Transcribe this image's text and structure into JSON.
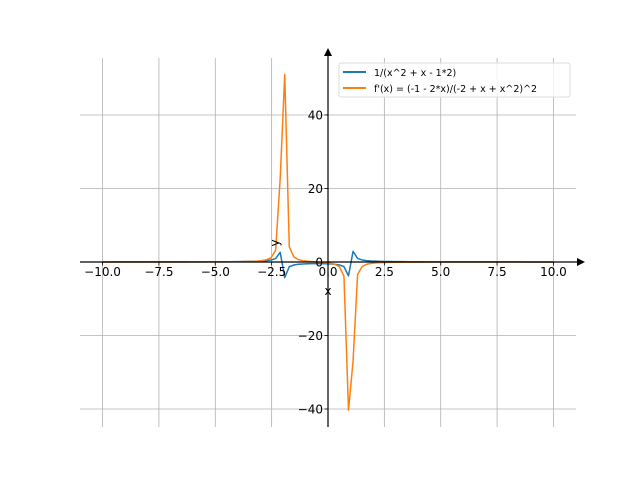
{
  "chart_data": {
    "type": "line",
    "title": "",
    "xlabel": "x",
    "ylabel": "y",
    "xlim": [
      -11.0,
      11.0
    ],
    "ylim": [
      -44.9,
      55.5
    ],
    "grid": true,
    "legend_position": "top-right",
    "x_ticks": [
      -10,
      -7.5,
      -5,
      -2.5,
      0,
      2.5,
      5,
      7.5,
      10
    ],
    "x_tick_labels": [
      "−10.0",
      "−7.5",
      "−5.0",
      "−2.5",
      "0.0",
      "2.5",
      "5.0",
      "7.5",
      "10.0"
    ],
    "y_ticks": [
      -40,
      -20,
      0,
      20,
      40
    ],
    "y_tick_labels": [
      "−40",
      "−20",
      "0",
      "20",
      "40"
    ],
    "sampling": {
      "x_start": -10,
      "x_end": 10,
      "num_points": 100
    },
    "series": [
      {
        "name": "1/(x^2 + x - 1*2)",
        "expr": "1/(x*x + x - 2)",
        "color": "#1f77b4",
        "peak_max": 2.9,
        "peak_min": -4.1
      },
      {
        "name": "f'(x) = (-1 - 2*x)/(-2 + x + x^2)^2",
        "expr": "(-1 - 2*x)/Math.pow(-2 + x + x*x, 2)",
        "color": "#ff7f0e",
        "peak_max": 50.9,
        "peak_min": -40.1
      }
    ]
  }
}
